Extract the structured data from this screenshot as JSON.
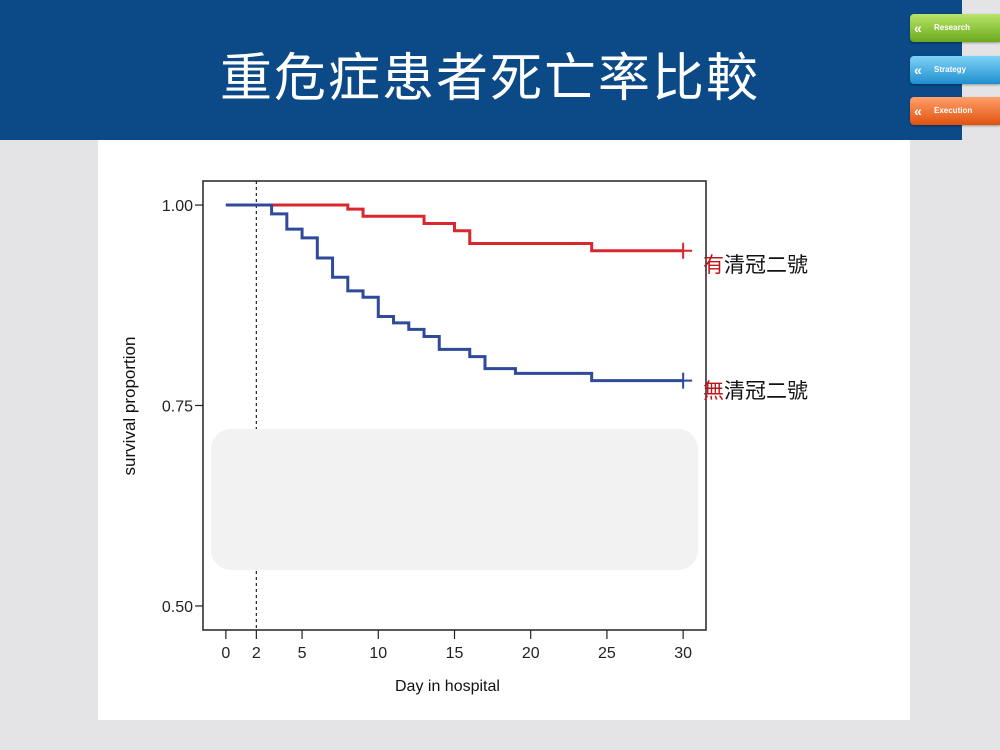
{
  "slide": {
    "title": "重危症患者死亡率比較"
  },
  "side_tabs": [
    {
      "label": "Research",
      "color": "#8cc63f"
    },
    {
      "label": "Strategy",
      "color": "#29a3e0"
    },
    {
      "label": "Execution",
      "color": "#f26b21"
    }
  ],
  "chart_data": {
    "type": "line",
    "step": true,
    "xlabel": "Day in hospital",
    "ylabel": "survival proportion",
    "xlim": [
      -1.5,
      31.5
    ],
    "ylim": [
      0.47,
      1.03
    ],
    "x_ticks": [
      "0",
      "2",
      "5",
      "10",
      "15",
      "20",
      "25",
      "30"
    ],
    "x_tick_values": [
      0,
      2,
      5,
      10,
      15,
      20,
      25,
      30
    ],
    "y_ticks": [
      "0.50",
      "0.75",
      "1.00"
    ],
    "y_tick_values": [
      0.5,
      0.75,
      1.0
    ],
    "reference_line_x": 2,
    "grid": false,
    "series": [
      {
        "name": "有清冠二號",
        "prefix": "有",
        "suffix": "清冠二號",
        "color": "#d9272e",
        "x": [
          0,
          8,
          9,
          13,
          15,
          16,
          24,
          30
        ],
        "y": [
          1.0,
          0.995,
          0.986,
          0.977,
          0.968,
          0.952,
          0.943,
          0.943
        ],
        "censored_x": 30
      },
      {
        "name": "無清冠二號",
        "prefix": "無",
        "suffix": "清冠二號",
        "color": "#2f4a9a",
        "x": [
          0,
          3,
          4,
          5,
          6,
          7,
          8,
          9,
          10,
          11,
          12,
          13,
          14,
          16,
          17,
          19,
          24,
          30
        ],
        "y": [
          1.0,
          0.989,
          0.97,
          0.959,
          0.934,
          0.91,
          0.893,
          0.885,
          0.861,
          0.853,
          0.845,
          0.836,
          0.82,
          0.811,
          0.796,
          0.79,
          0.781,
          0.781
        ],
        "censored_x": 30
      }
    ]
  }
}
